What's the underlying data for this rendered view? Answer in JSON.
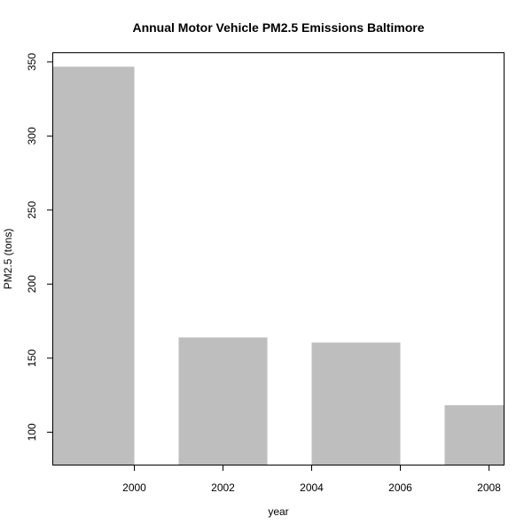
{
  "chart_data": {
    "type": "bar",
    "title": "Annual Motor Vehicle PM2.5 Emissions Baltimore",
    "xlabel": "year",
    "ylabel": "PM2.5 (tons)",
    "categories": [
      "1999",
      "2002",
      "2005",
      "2008"
    ],
    "values": [
      346.8,
      164.0,
      160.5,
      118.2
    ],
    "x_ticks": [
      2000,
      2002,
      2004,
      2006,
      2008
    ],
    "y_ticks": [
      100,
      150,
      200,
      250,
      300,
      350
    ],
    "xlim": [
      1998.15,
      2008.35
    ],
    "ylim": [
      77.5,
      356.5
    ],
    "bar_width_years": 2,
    "bar_color": "#bebebe",
    "grid": false
  }
}
